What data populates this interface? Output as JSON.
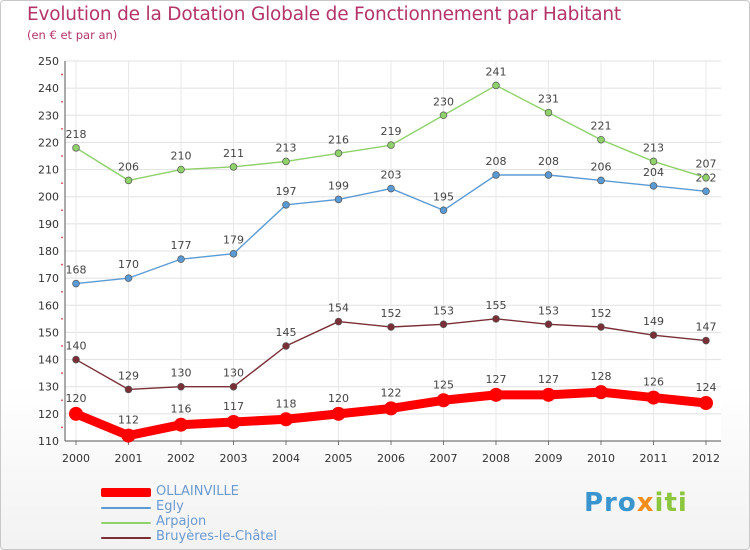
{
  "title": "Evolution de la Dotation Globale de Fonctionnement par Habitant",
  "subtitle": "(en € et par an)",
  "logo": {
    "part1": "Pro",
    "part2": "x",
    "part3": "iti"
  },
  "chart_data": {
    "type": "line",
    "x": [
      "2000",
      "2001",
      "2002",
      "2003",
      "2004",
      "2005",
      "2006",
      "2007",
      "2008",
      "2009",
      "2010",
      "2011",
      "2012"
    ],
    "ylim": [
      110,
      250
    ],
    "yticks": [
      110,
      120,
      130,
      140,
      150,
      160,
      170,
      180,
      190,
      200,
      210,
      220,
      230,
      240,
      250
    ],
    "grid": true,
    "legend_position": "bottom-left",
    "series": [
      {
        "name": "Egly",
        "color": "#5b9bd5",
        "values": [
          168,
          170,
          177,
          179,
          197,
          199,
          203,
          195,
          208,
          208,
          206,
          204,
          202
        ]
      },
      {
        "name": "Arpajon",
        "color": "#8fd16a",
        "values": [
          218,
          206,
          210,
          211,
          213,
          216,
          219,
          230,
          241,
          231,
          221,
          213,
          207
        ]
      },
      {
        "name": "Bruyères-le-Châtel",
        "color": "#7a2e35",
        "values": [
          140,
          129,
          130,
          130,
          145,
          154,
          152,
          153,
          155,
          153,
          152,
          149,
          147
        ]
      },
      {
        "name": "OLLAINVILLE",
        "color": "#ff0000",
        "values": [
          120,
          112,
          116,
          117,
          118,
          120,
          122,
          125,
          127,
          127,
          128,
          126,
          124
        ]
      }
    ],
    "legend_order": [
      "OLLAINVILLE",
      "Egly",
      "Arpajon",
      "Bruyères-le-Châtel"
    ]
  }
}
